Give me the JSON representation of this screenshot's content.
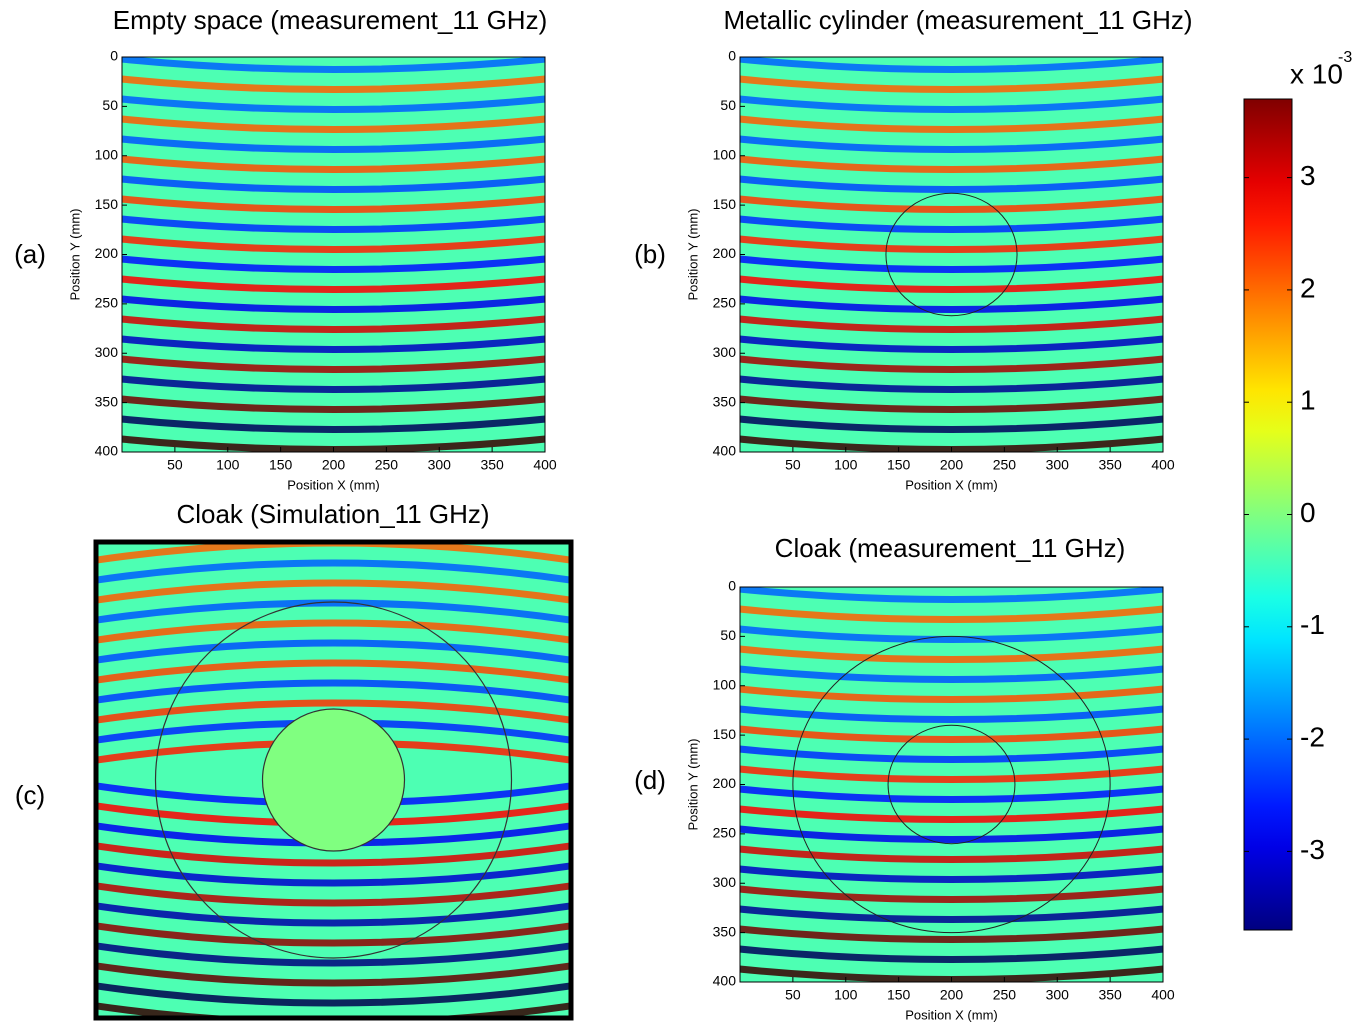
{
  "chart_data": [
    {
      "type": "heatmap",
      "title": "Empty space (measurement_11 GHz)",
      "panel_label": "(a)",
      "x_label": "Position X (mm)",
      "y_label": "Position Y (mm)",
      "xlim": [
        0,
        400
      ],
      "ylim": [
        0,
        400
      ],
      "y_inverted": true,
      "xticks": [
        50,
        100,
        150,
        200,
        250,
        300,
        350,
        400
      ],
      "yticks": [
        0,
        50,
        100,
        150,
        200,
        250,
        300,
        350,
        400
      ]
    },
    {
      "type": "heatmap",
      "title": "Metallic cylinder (measurement_11 GHz)",
      "panel_label": "(b)",
      "x_label": "Position X (mm)",
      "y_label": "Position Y (mm)",
      "xlim": [
        0,
        400
      ],
      "ylim": [
        0,
        400
      ],
      "y_inverted": true,
      "xticks": [
        50,
        100,
        150,
        200,
        250,
        300,
        350,
        400
      ],
      "yticks": [
        0,
        50,
        100,
        150,
        200,
        250,
        300,
        350,
        400
      ]
    },
    {
      "type": "heatmap",
      "title": "Cloak (Simulation_11 GHz)",
      "panel_label": "(c)"
    },
    {
      "type": "heatmap",
      "title": "Cloak (measurement_11 GHz)",
      "panel_label": "(d)",
      "x_label": "Position X (mm)",
      "y_label": "Position Y (mm)",
      "xlim": [
        0,
        400
      ],
      "ylim": [
        0,
        400
      ],
      "y_inverted": true,
      "xticks": [
        50,
        100,
        150,
        200,
        250,
        300,
        350,
        400
      ],
      "yticks": [
        0,
        50,
        100,
        150,
        200,
        250,
        300,
        350,
        400
      ]
    },
    {
      "type": "colorbar",
      "label": "x 10",
      "label_exponent": "-3",
      "clim": [
        -3.7,
        3.7
      ],
      "ticks": [
        -3,
        -2,
        -1,
        0,
        1,
        2,
        3
      ]
    }
  ]
}
